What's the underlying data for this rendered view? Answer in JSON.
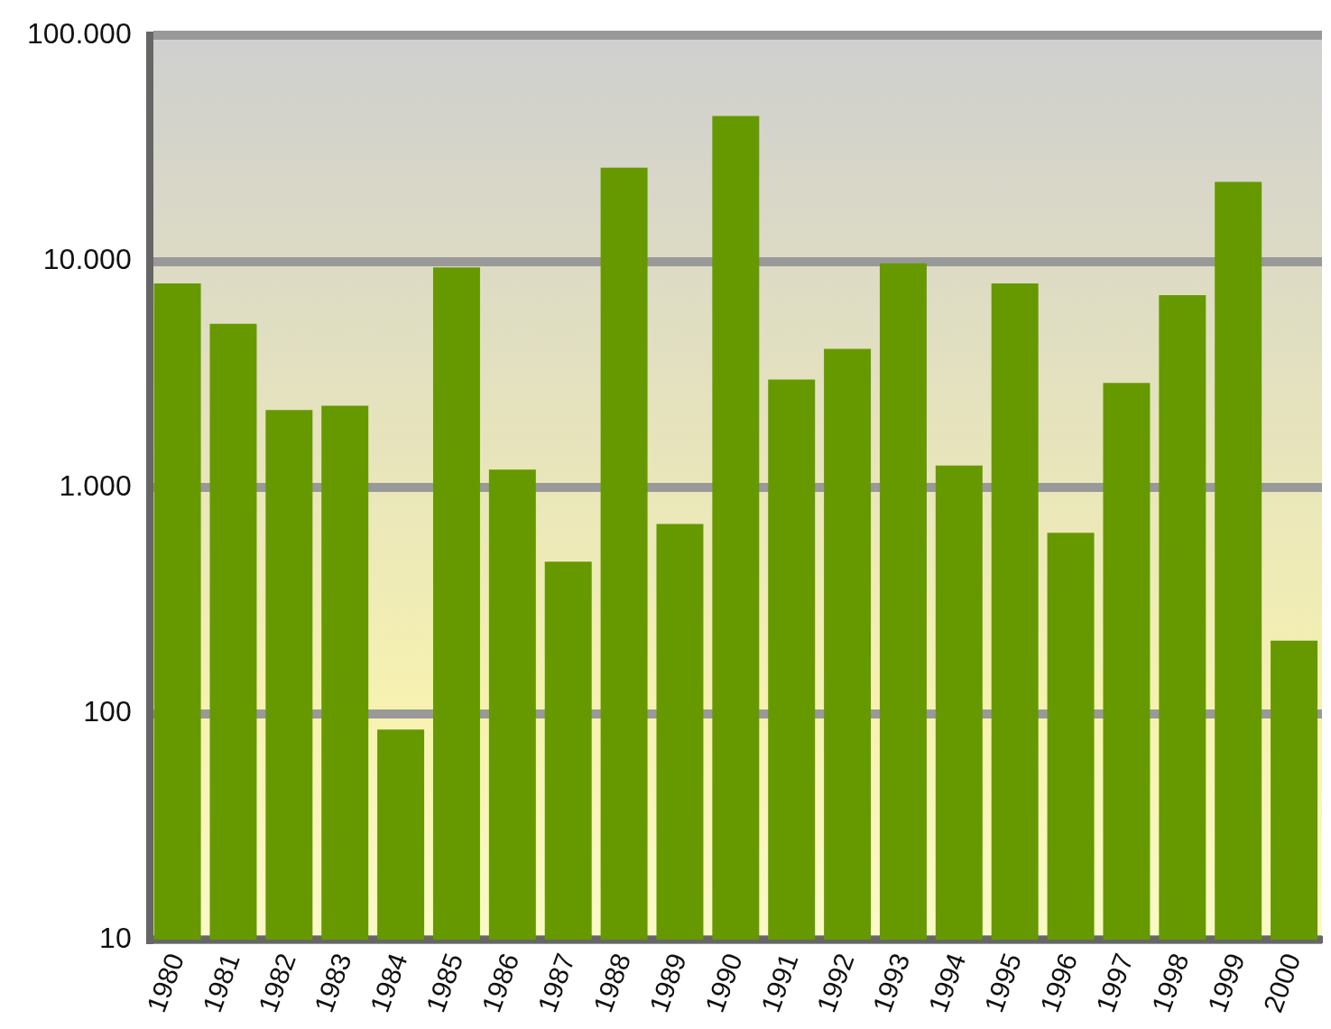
{
  "chart_data": {
    "type": "bar",
    "categories": [
      "1980",
      "1981",
      "1982",
      "1983",
      "1984",
      "1985",
      "1986",
      "1987",
      "1988",
      "1989",
      "1990",
      "1991",
      "1992",
      "1993",
      "1994",
      "1995",
      "1996",
      "1997",
      "1998",
      "1999",
      "2000"
    ],
    "values": [
      8000,
      5300,
      2200,
      2300,
      85,
      9400,
      1200,
      470,
      26000,
      690,
      44000,
      3000,
      4100,
      9800,
      1250,
      8000,
      630,
      2900,
      7100,
      22500,
      210
    ],
    "color": "#669900",
    "log": "y",
    "ylim": [
      10,
      100000
    ],
    "yticks": [
      10,
      100,
      {
        "value": 1000,
        "label": "1.000"
      },
      {
        "value": 10000,
        "label": "10.000"
      },
      {
        "value": 100000,
        "label": "100.000"
      }
    ],
    "grid": "y",
    "legend": false
  }
}
